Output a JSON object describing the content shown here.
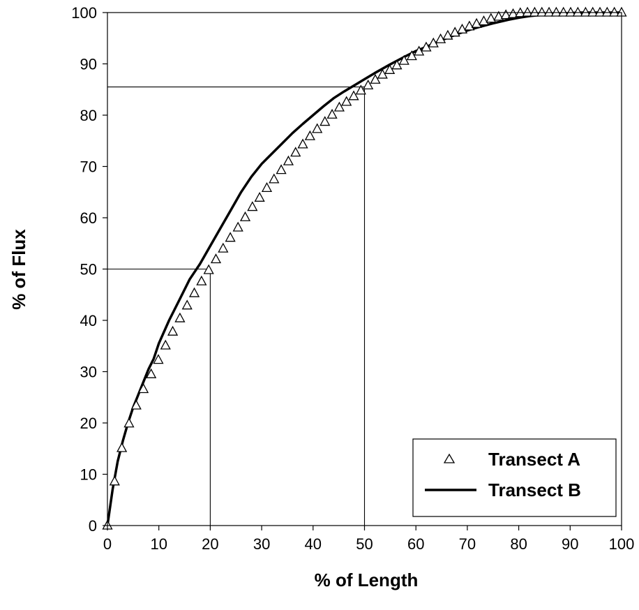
{
  "chart_data": {
    "type": "line",
    "title": "",
    "xlabel": "% of Length",
    "ylabel": "% of Flux",
    "xlim": [
      0,
      100
    ],
    "ylim": [
      0,
      100
    ],
    "xticks": [
      0,
      10,
      20,
      30,
      40,
      50,
      60,
      70,
      80,
      90,
      100
    ],
    "yticks": [
      0,
      10,
      20,
      30,
      40,
      50,
      60,
      70,
      80,
      90,
      100
    ],
    "grid": false,
    "legend_position": "bottom-right",
    "series": [
      {
        "name": "Transect A",
        "style": "triangle-markers",
        "color": "#000000",
        "x": [
          0,
          1.4,
          2.8,
          4.2,
          5.6,
          7.0,
          8.5,
          9.9,
          11.3,
          12.7,
          14.1,
          15.5,
          16.9,
          18.3,
          19.7,
          21.1,
          22.5,
          23.9,
          25.4,
          26.8,
          28.2,
          29.6,
          31.0,
          32.4,
          33.8,
          35.2,
          36.6,
          38.0,
          39.4,
          40.8,
          42.3,
          43.7,
          45.1,
          46.5,
          47.9,
          49.3,
          50.7,
          52.1,
          53.5,
          54.9,
          56.3,
          57.7,
          59.2,
          60.6,
          62.0,
          63.4,
          64.8,
          66.2,
          67.6,
          69.0,
          70.4,
          71.8,
          73.2,
          74.6,
          76.1,
          77.5,
          78.9,
          80.3,
          81.7,
          83.1,
          84.5,
          85.9,
          87.3,
          88.7,
          90.1,
          91.5,
          93.0,
          94.4,
          95.8,
          97.2,
          98.6,
          100
        ],
        "y": [
          0,
          8.6,
          15.1,
          19.9,
          23.4,
          26.6,
          29.5,
          32.3,
          35.1,
          37.8,
          40.4,
          42.9,
          45.3,
          47.6,
          49.8,
          51.9,
          54.0,
          56.1,
          58.1,
          60.1,
          62.1,
          63.9,
          65.8,
          67.5,
          69.3,
          71.0,
          72.7,
          74.3,
          75.9,
          77.3,
          78.7,
          80.1,
          81.5,
          82.6,
          83.7,
          84.8,
          85.8,
          86.9,
          87.9,
          88.8,
          89.7,
          90.6,
          91.5,
          92.4,
          93.2,
          94.0,
          94.8,
          95.5,
          96.1,
          96.7,
          97.3,
          97.8,
          98.3,
          98.8,
          99.2,
          99.5,
          99.7,
          99.9,
          100,
          100,
          100,
          100,
          100,
          100,
          100,
          100,
          100,
          100,
          100,
          100,
          100,
          100
        ]
      },
      {
        "name": "Transect B",
        "style": "solid-line",
        "color": "#000000",
        "x": [
          0,
          1,
          2,
          3,
          4,
          5,
          6,
          7,
          8,
          9,
          10,
          12,
          14,
          16,
          18,
          20,
          22,
          24,
          26,
          28,
          30,
          32,
          34,
          36,
          38,
          40,
          42,
          44,
          46,
          48,
          50,
          52,
          55,
          58,
          60,
          62,
          65,
          68,
          70,
          72,
          75,
          78,
          80,
          82,
          85,
          88,
          90,
          92,
          95,
          98,
          100
        ],
        "y": [
          0,
          7,
          12.5,
          16.5,
          20,
          23,
          25.5,
          28,
          30.5,
          32.5,
          35.5,
          40,
          44,
          48,
          51,
          54.5,
          58,
          61.5,
          65,
          68,
          70.5,
          72.5,
          74.5,
          76.5,
          78.3,
          80,
          81.7,
          83.3,
          84.6,
          85.8,
          87,
          88.2,
          89.9,
          91.5,
          92.5,
          93.3,
          94.6,
          95.8,
          96.5,
          97.1,
          97.9,
          98.6,
          99,
          99.3,
          99.6,
          99.8,
          99.9,
          100,
          100,
          100,
          100
        ]
      }
    ],
    "reference_lines": [
      {
        "x": 20,
        "y": 50
      },
      {
        "x": 50,
        "y": 85.5
      }
    ]
  }
}
